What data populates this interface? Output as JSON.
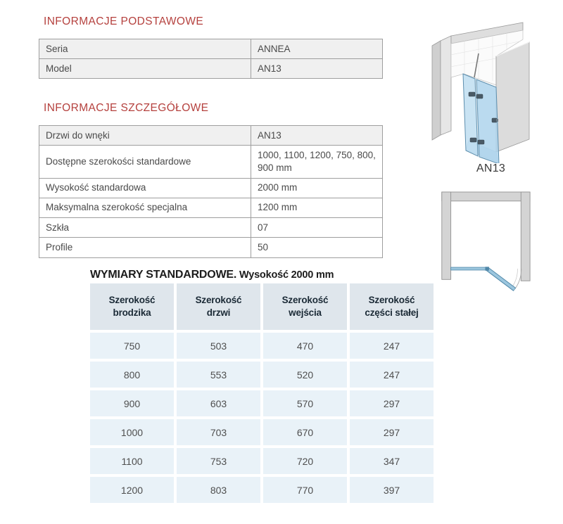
{
  "page": {
    "section_basic_title": "INFORMACJE PODSTAWOWE",
    "section_detail_title": "INFORMACJE SZCZEGÓŁOWE",
    "dimensions_title": "WYMIARY STANDARDOWE.",
    "dimensions_subtitle": " Wysokość 2000 mm"
  },
  "basic_info_table": {
    "rows": [
      {
        "label": "Seria",
        "value": "ANNEA"
      },
      {
        "label": "Model",
        "value": "AN13"
      }
    ]
  },
  "detail_info_table": {
    "rows": [
      {
        "label": "Drzwi do wnęki",
        "value": "AN13",
        "header": true
      },
      {
        "label": "Dostępne szerokości standardowe",
        "value": "1000, 1100, 1200, 750, 800, 900 mm"
      },
      {
        "label": "Wysokość standardowa",
        "value": "2000 mm"
      },
      {
        "label": "Maksymalna szerokość specjalna",
        "value": "1200 mm"
      },
      {
        "label": "Szkła",
        "value": "07"
      },
      {
        "label": "Profile",
        "value": "50"
      }
    ]
  },
  "dimensions_table": {
    "columns": [
      "Szerokość brodzika",
      "Szerokość drzwi",
      "Szerokość wejścia",
      "Szerokość części stałej"
    ],
    "rows": [
      [
        "750",
        "503",
        "470",
        "247"
      ],
      [
        "800",
        "553",
        "520",
        "247"
      ],
      [
        "900",
        "603",
        "570",
        "297"
      ],
      [
        "1000",
        "703",
        "670",
        "297"
      ],
      [
        "1100",
        "753",
        "720",
        "347"
      ],
      [
        "1200",
        "803",
        "770",
        "397"
      ]
    ]
  },
  "product": {
    "model_label": "AN13"
  },
  "colors": {
    "heading_red": "#b5413e",
    "table_gray_bg": "#f0f0f0",
    "table_border": "#9e9e9e",
    "dim_header_bg": "#dfe6ec",
    "dim_header_text": "#1b2a36",
    "dim_cell_bg": "#e9f2f8",
    "glass_blue": "#bcdcf0",
    "wall_gray": "#dcdcdc"
  },
  "illustrations": {
    "iso_view": "shower-door-isometric-view",
    "plan_view": "shower-door-top-plan-view"
  }
}
